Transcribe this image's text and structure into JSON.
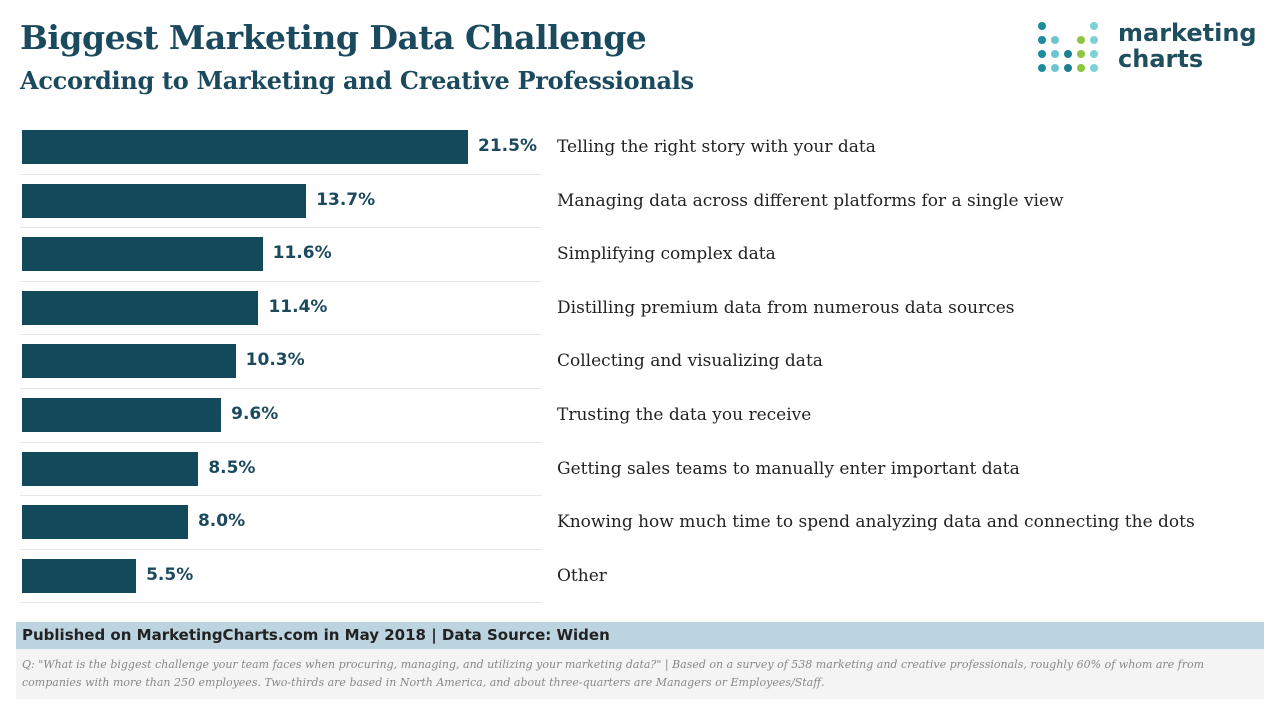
{
  "header": {
    "title": "Biggest Marketing Data Challenge",
    "subtitle": "According to Marketing and Creative Professionals"
  },
  "logo": {
    "line1": "marketing",
    "line2": "charts"
  },
  "chart_data": {
    "type": "bar",
    "orientation": "horizontal",
    "title": "Biggest Marketing Data Challenge",
    "subtitle": "According to Marketing and Creative Professionals",
    "categories": [
      "Telling the right story with your data",
      "Managing data across different platforms for a single view",
      "Simplifying complex data",
      "Distilling premium data from numerous data sources",
      "Collecting and visualizing data",
      "Trusting the data you receive",
      "Getting sales teams to manually enter important data",
      "Knowing how much time to spend analyzing data and connecting the dots",
      "Other"
    ],
    "values": [
      21.5,
      13.7,
      11.6,
      11.4,
      10.3,
      9.6,
      8.5,
      8.0,
      5.5
    ],
    "labels": [
      "21.5%",
      "13.7%",
      "11.6%",
      "11.4%",
      "10.3%",
      "9.6%",
      "8.5%",
      "8.0%",
      "5.5%"
    ],
    "xlim": [
      0,
      25
    ],
    "unit": "%",
    "bar_color": "#124a5c"
  },
  "footer": {
    "published": "Published on MarketingCharts.com in May 2018 | Data Source: Widen",
    "note": "Q: \"What is the biggest challenge your team faces when procuring, managing, and utilizing your marketing data?\" | Based on a survey of 538 marketing and creative professionals, roughly 60% of whom are from companies with more than 250 employees. Two-thirds are based in North America, and about three-quarters are Managers or Employees/Staff."
  }
}
